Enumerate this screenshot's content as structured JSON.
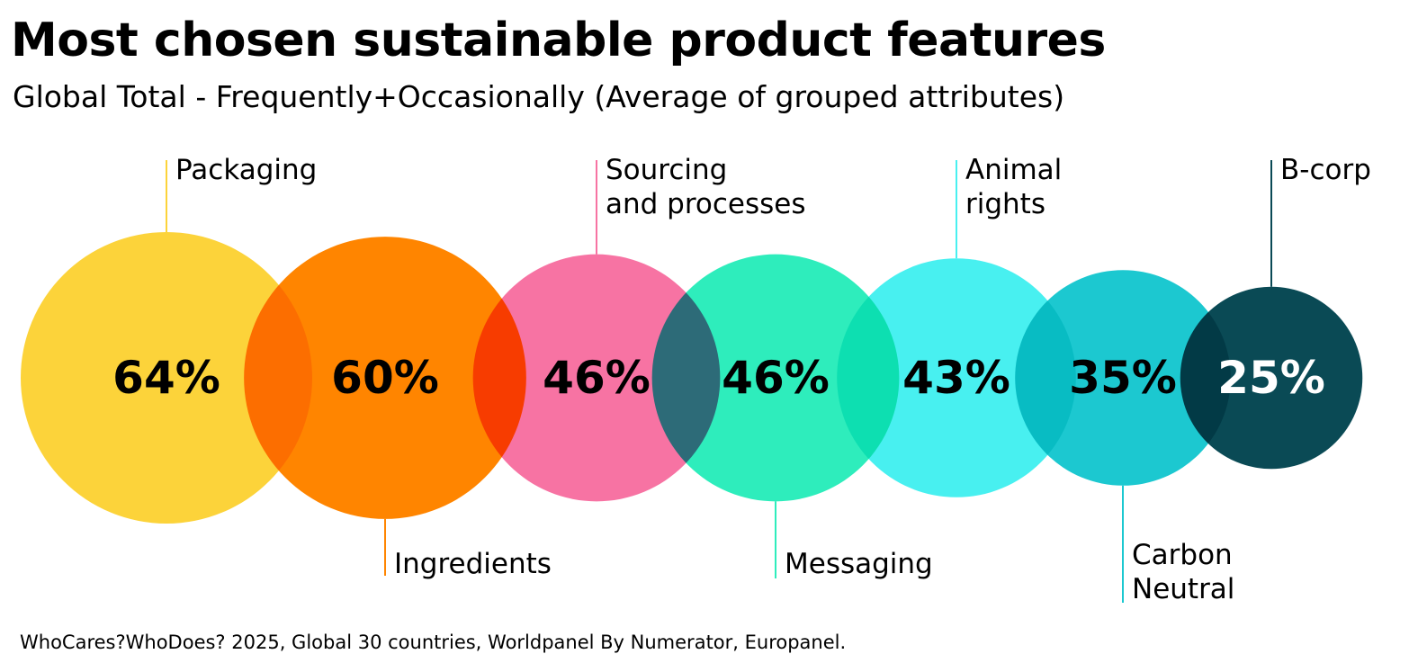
{
  "title": "Most chosen sustainable product features",
  "subtitle": "Global Total - Frequently+Occasionally (Average of grouped attributes)",
  "source": "WhoCares?WhoDoes? 2025, Global 30 countries, Worldpanel By Numerator, Europanel.",
  "chart_data": {
    "type": "bubble",
    "title": "Most chosen sustainable product features",
    "subtitle": "Global Total - Frequently+Occasionally (Average of grouped attributes)",
    "unit": "%",
    "series": [
      {
        "category": "Packaging",
        "label_lines": [
          "Packaging"
        ],
        "value": 64,
        "value_label": "64%",
        "color": "#FCD33A",
        "text_color": "#000000",
        "label_position": "top"
      },
      {
        "category": "Ingredients",
        "label_lines": [
          "Ingredients"
        ],
        "value": 60,
        "value_label": "60%",
        "color": "#FF8500",
        "text_color": "#000000",
        "label_position": "bottom"
      },
      {
        "category": "Sourcing and processes",
        "label_lines": [
          "Sourcing",
          "and processes"
        ],
        "value": 46,
        "value_label": "46%",
        "color": "#F773A3",
        "text_color": "#000000",
        "label_position": "top"
      },
      {
        "category": "Messaging",
        "label_lines": [
          "Messaging"
        ],
        "value": 46,
        "value_label": "46%",
        "color": "#2EEDBC",
        "text_color": "#000000",
        "label_position": "bottom"
      },
      {
        "category": "Animal rights",
        "label_lines": [
          "Animal",
          "rights"
        ],
        "value": 43,
        "value_label": "43%",
        "color": "#48F0F0",
        "text_color": "#000000",
        "label_position": "top"
      },
      {
        "category": "Carbon Neutral",
        "label_lines": [
          "Carbon",
          "Neutral"
        ],
        "value": 35,
        "value_label": "35%",
        "color": "#1CC8D0",
        "text_color": "#000000",
        "label_position": "bottom"
      },
      {
        "category": "B-corp",
        "label_lines": [
          "B-corp"
        ],
        "value": 25,
        "value_label": "25%",
        "color": "#0A4A55",
        "text_color": "#FFFFFF",
        "label_position": "top"
      }
    ]
  }
}
